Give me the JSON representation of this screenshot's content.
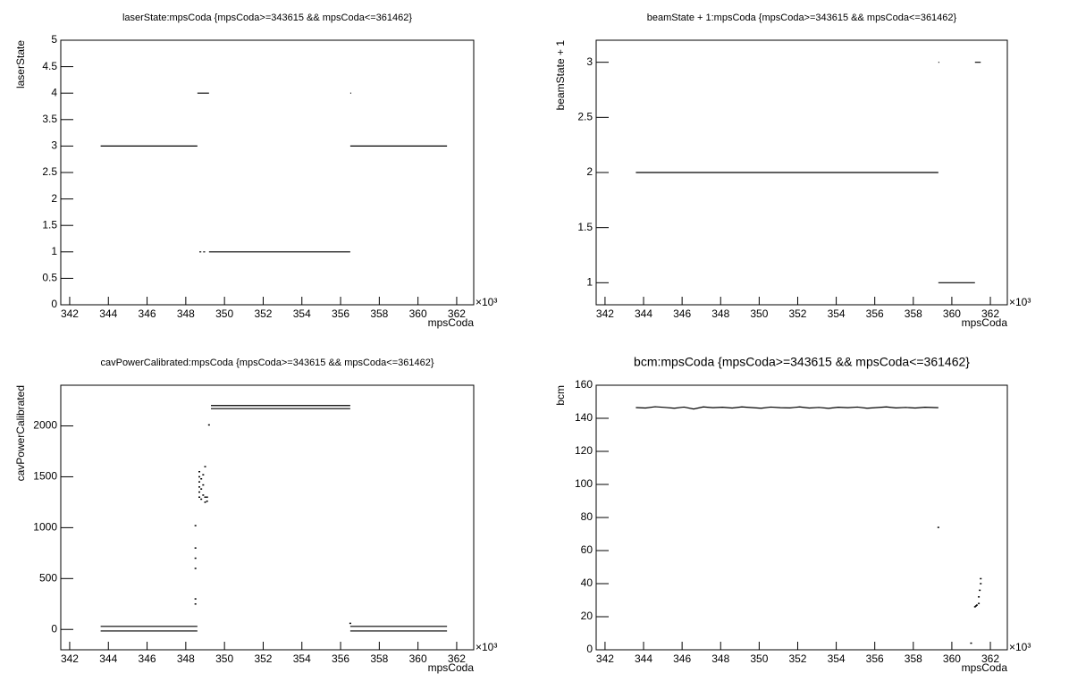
{
  "chart_data": [
    {
      "type": "line",
      "title": "laserState:mpsCoda {mpsCoda>=343615 && mpsCoda<=361462}",
      "xlabel": "mpsCoda",
      "ylabel": "laserState",
      "x_multiplier": "×10³",
      "xlim": [
        341.54,
        362.88
      ],
      "ylim": [
        0,
        5
      ],
      "xticks": [
        342,
        344,
        346,
        348,
        350,
        352,
        354,
        356,
        358,
        360,
        362
      ],
      "yticks": [
        0,
        0.5,
        1,
        1.5,
        2,
        2.5,
        3,
        3.5,
        4,
        4.5,
        5
      ],
      "series": [
        {
          "style": "line",
          "color": "#000000",
          "x": [
            343.6,
            348.6,
            null,
            348.6,
            349.2,
            null,
            348.7,
            348.8,
            null,
            348.9,
            349.0,
            null,
            349.2,
            356.5,
            null,
            356.5,
            356.55,
            null,
            356.5,
            361.5
          ],
          "values": [
            3,
            3,
            null,
            4,
            4,
            null,
            1,
            1,
            null,
            1,
            1,
            null,
            1,
            1,
            null,
            4,
            4,
            null,
            3,
            3
          ]
        }
      ]
    },
    {
      "type": "line",
      "title": "beamState + 1:mpsCoda {mpsCoda>=343615 && mpsCoda<=361462}",
      "xlabel": "mpsCoda",
      "ylabel": "beamState + 1",
      "x_multiplier": "×10³",
      "xlim": [
        341.54,
        362.88
      ],
      "ylim": [
        0.8,
        3.2
      ],
      "xticks": [
        342,
        344,
        346,
        348,
        350,
        352,
        354,
        356,
        358,
        360,
        362
      ],
      "yticks": [
        1,
        1.5,
        2,
        2.5,
        3
      ],
      "series": [
        {
          "style": "line",
          "color": "#000000",
          "x": [
            343.6,
            359.3,
            null,
            359.3,
            359.35,
            null,
            359.3,
            361.2,
            null,
            361.2,
            361.5
          ],
          "values": [
            2,
            2,
            null,
            3,
            3,
            null,
            1,
            1,
            null,
            3,
            3
          ]
        }
      ]
    },
    {
      "type": "line",
      "title": "cavPowerCalibrated:mpsCoda {mpsCoda>=343615 && mpsCoda<=361462}",
      "xlabel": "mpsCoda",
      "ylabel": "cavPowerCalibrated",
      "x_multiplier": "×10³",
      "xlim": [
        341.54,
        362.88
      ],
      "ylim": [
        -200,
        2400
      ],
      "xticks": [
        342,
        344,
        346,
        348,
        350,
        352,
        354,
        356,
        358,
        360,
        362
      ],
      "yticks": [
        0,
        500,
        1000,
        1500,
        2000
      ],
      "series": [
        {
          "style": "line",
          "color": "#000000",
          "x": [
            343.6,
            348.6,
            null,
            343.6,
            348.6,
            null,
            356.5,
            361.5,
            null,
            356.5,
            361.5,
            null,
            349.3,
            356.5,
            null,
            349.3,
            356.5
          ],
          "values": [
            30,
            30,
            null,
            -15,
            -15,
            null,
            30,
            30,
            null,
            -15,
            -15,
            null,
            2200,
            2200,
            null,
            2170,
            2170
          ]
        },
        {
          "style": "points",
          "color": "#000000",
          "x": [
            348.5,
            348.5,
            348.5,
            348.5,
            348.5,
            348.5,
            348.7,
            348.7,
            348.7,
            348.7,
            348.7,
            348.7,
            348.8,
            348.8,
            348.8,
            348.9,
            348.9,
            348.9,
            349.0,
            349.0,
            349.0,
            349.1,
            349.1,
            349.2,
            356.5
          ],
          "values": [
            250,
            300,
            600,
            700,
            800,
            1020,
            1300,
            1350,
            1400,
            1450,
            1500,
            1550,
            1280,
            1380,
            1480,
            1320,
            1420,
            1520,
            1250,
            1300,
            1600,
            1260,
            1300,
            2010,
            60
          ]
        }
      ]
    },
    {
      "type": "line",
      "title": "bcm:mpsCoda {mpsCoda>=343615 && mpsCoda<=361462}",
      "xlabel": "mpsCoda",
      "ylabel": "bcm",
      "x_multiplier": "×10³",
      "xlim": [
        341.54,
        362.88
      ],
      "ylim": [
        0,
        160
      ],
      "xticks": [
        342,
        344,
        346,
        348,
        350,
        352,
        354,
        356,
        358,
        360,
        362
      ],
      "yticks": [
        0,
        20,
        40,
        60,
        80,
        100,
        120,
        140,
        160
      ],
      "series": [
        {
          "style": "line",
          "color": "#000000",
          "x": [
            343.6,
            344.1,
            344.6,
            345.1,
            345.6,
            346.1,
            346.6,
            347.1,
            347.6,
            348.1,
            348.6,
            349.1,
            349.6,
            350.1,
            350.6,
            351.1,
            351.6,
            352.1,
            352.6,
            353.1,
            353.6,
            354.1,
            354.6,
            355.1,
            355.6,
            356.1,
            356.6,
            357.1,
            357.6,
            358.1,
            358.6,
            359.1,
            359.3
          ],
          "values": [
            146.5,
            146.2,
            147,
            146.6,
            146.1,
            146.8,
            145.6,
            146.9,
            146.4,
            146.7,
            146.2,
            146.9,
            146.5,
            146.1,
            146.8,
            146.4,
            146.3,
            146.9,
            146.2,
            146.6,
            146.0,
            146.7,
            146.4,
            146.8,
            146.1,
            146.5,
            146.9,
            146.3,
            146.6,
            146.2,
            146.7,
            146.5,
            146.4
          ]
        },
        {
          "style": "points",
          "color": "#000000",
          "x": [
            359.3,
            361.0,
            361.2,
            361.25,
            361.3,
            361.4,
            361.4,
            361.45,
            361.5,
            361.5
          ],
          "values": [
            74,
            4,
            26,
            26.5,
            27,
            28,
            32,
            36,
            40,
            43
          ]
        }
      ]
    }
  ]
}
